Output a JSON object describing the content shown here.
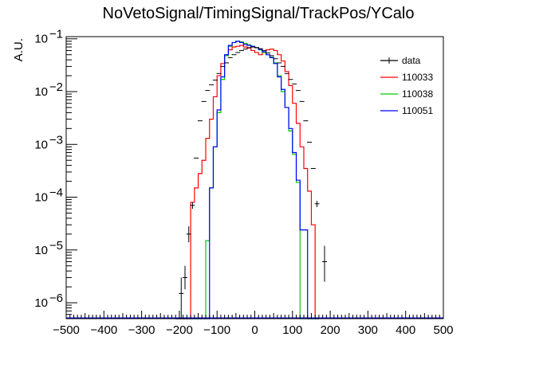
{
  "chart_data": {
    "type": "line",
    "title": "NoVetoSignal/TimingSignal/TrackPos/YCalo",
    "xlabel": "",
    "ylabel": "A.U.",
    "xlim": [
      -500,
      500
    ],
    "ylim": [
      5e-07,
      0.11
    ],
    "yscale": "log",
    "xticks": [
      {
        "value": -500,
        "label": "−500"
      },
      {
        "value": -400,
        "label": "−400"
      },
      {
        "value": -300,
        "label": "−300"
      },
      {
        "value": -200,
        "label": "−200"
      },
      {
        "value": -100,
        "label": "−100"
      },
      {
        "value": 0,
        "label": "0"
      },
      {
        "value": 100,
        "label": "100"
      },
      {
        "value": 200,
        "label": "200"
      },
      {
        "value": 300,
        "label": "300"
      },
      {
        "value": 400,
        "label": "400"
      },
      {
        "value": 500,
        "label": "500"
      }
    ],
    "yticks": [
      {
        "value": 1e-06,
        "base": "10",
        "exp": "−6"
      },
      {
        "value": 1e-05,
        "base": "10",
        "exp": "−5"
      },
      {
        "value": 0.0001,
        "base": "10",
        "exp": "−4"
      },
      {
        "value": 0.001,
        "base": "10",
        "exp": "−3"
      },
      {
        "value": 0.01,
        "base": "10",
        "exp": "−2"
      },
      {
        "value": 0.1,
        "base": "10",
        "exp": "−1"
      }
    ],
    "legend": {
      "position": "top-right",
      "entries": [
        {
          "label": "data",
          "color": "#000000",
          "style": "errorbar"
        },
        {
          "label": "110033",
          "color": "#ff0000",
          "style": "line"
        },
        {
          "label": "110038",
          "color": "#00cc00",
          "style": "line"
        },
        {
          "label": "110051",
          "color": "#0000ff",
          "style": "line"
        }
      ]
    },
    "bin_edges": [
      -210,
      -200,
      -190,
      -180,
      -170,
      -160,
      -150,
      -140,
      -130,
      -120,
      -110,
      -100,
      -90,
      -80,
      -70,
      -60,
      -50,
      -40,
      -30,
      -20,
      -10,
      0,
      10,
      20,
      30,
      40,
      50,
      60,
      70,
      80,
      90,
      100,
      110,
      120,
      130,
      140,
      150,
      160,
      170
    ],
    "series": [
      {
        "name": "110033",
        "color": "#ff0000",
        "values": [
          0,
          0,
          0,
          0,
          8e-05,
          0.00015,
          0.00028,
          0.0005,
          0.0013,
          0.003,
          0.008,
          0.02,
          0.034,
          0.05,
          0.062,
          0.07,
          0.072,
          0.075,
          0.07,
          0.067,
          0.06,
          0.055,
          0.05,
          0.055,
          0.062,
          0.064,
          0.06,
          0.05,
          0.038,
          0.024,
          0.013,
          0.006,
          0.0025,
          0.0009,
          0.00035,
          0.00013,
          3e-05,
          0
        ]
      },
      {
        "name": "110038",
        "color": "#00cc00",
        "values": [
          0,
          0,
          0,
          0,
          0,
          0,
          0,
          0,
          1.5e-05,
          0.00015,
          0.0009,
          0.004,
          0.017,
          0.048,
          0.072,
          0.085,
          0.09,
          0.088,
          0.082,
          0.077,
          0.072,
          0.068,
          0.062,
          0.055,
          0.05,
          0.045,
          0.035,
          0.02,
          0.01,
          0.005,
          0.0018,
          0.00065,
          0.00019,
          0,
          0,
          0,
          0,
          0
        ]
      },
      {
        "name": "110051",
        "color": "#0000ff",
        "values": [
          0,
          0,
          0,
          0,
          0,
          0,
          0,
          0,
          0,
          0.00015,
          0.0009,
          0.0045,
          0.019,
          0.05,
          0.075,
          0.085,
          0.09,
          0.085,
          0.078,
          0.075,
          0.072,
          0.068,
          0.063,
          0.057,
          0.05,
          0.044,
          0.034,
          0.019,
          0.011,
          0.005,
          0.002,
          0.0007,
          0.00021,
          2.4e-05,
          2.4e-05,
          0,
          0,
          0
        ]
      },
      {
        "name": "data",
        "color": "#000000",
        "points": [
          {
            "x": -195,
            "y": 1.5e-06,
            "ylo": 5e-07,
            "yhi": 3e-06
          },
          {
            "x": -185,
            "y": 3e-06,
            "ylo": 1.8e-06,
            "yhi": 5e-06
          },
          {
            "x": -175,
            "y": 2e-05,
            "ylo": 1.4e-05,
            "yhi": 2.8e-05
          },
          {
            "x": -165,
            "y": 7e-05,
            "ylo": 6e-05,
            "yhi": 8e-05
          },
          {
            "x": -155,
            "y": 0.00055
          },
          {
            "x": -145,
            "y": 0.0028
          },
          {
            "x": -135,
            "y": 0.0065
          },
          {
            "x": -125,
            "y": 0.0105
          },
          {
            "x": -115,
            "y": 0.0135
          },
          {
            "x": -105,
            "y": 0.0165
          },
          {
            "x": -95,
            "y": 0.022
          },
          {
            "x": -85,
            "y": 0.03
          },
          {
            "x": -75,
            "y": 0.035
          },
          {
            "x": -65,
            "y": 0.044
          },
          {
            "x": -55,
            "y": 0.05
          },
          {
            "x": -45,
            "y": 0.055
          },
          {
            "x": -35,
            "y": 0.06
          },
          {
            "x": -25,
            "y": 0.064
          },
          {
            "x": -15,
            "y": 0.068
          },
          {
            "x": -5,
            "y": 0.07
          },
          {
            "x": 5,
            "y": 0.068
          },
          {
            "x": 15,
            "y": 0.065
          },
          {
            "x": 25,
            "y": 0.06
          },
          {
            "x": 35,
            "y": 0.054
          },
          {
            "x": 45,
            "y": 0.048
          },
          {
            "x": 55,
            "y": 0.042
          },
          {
            "x": 65,
            "y": 0.035
          },
          {
            "x": 75,
            "y": 0.03
          },
          {
            "x": 85,
            "y": 0.022
          },
          {
            "x": 95,
            "y": 0.017
          },
          {
            "x": 105,
            "y": 0.014
          },
          {
            "x": 115,
            "y": 0.0105
          },
          {
            "x": 125,
            "y": 0.0065
          },
          {
            "x": 135,
            "y": 0.0028
          },
          {
            "x": 145,
            "y": 0.0011
          },
          {
            "x": 155,
            "y": 0.00035
          },
          {
            "x": 165,
            "y": 7.5e-05,
            "ylo": 6.5e-05,
            "yhi": 8.5e-05
          },
          {
            "x": 185,
            "y": 6e-06,
            "ylo": 2.5e-06,
            "yhi": 1.2e-05
          }
        ]
      }
    ]
  }
}
